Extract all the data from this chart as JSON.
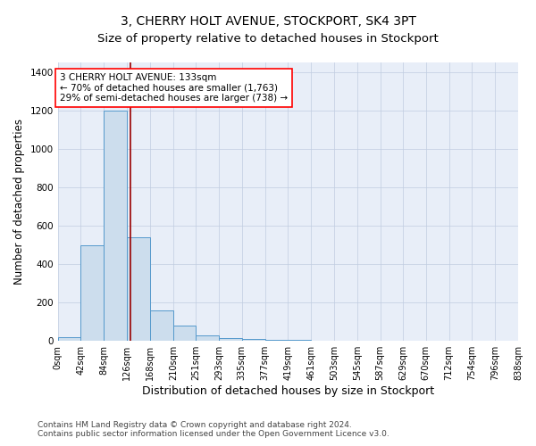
{
  "title": "3, CHERRY HOLT AVENUE, STOCKPORT, SK4 3PT",
  "subtitle": "Size of property relative to detached houses in Stockport",
  "xlabel": "Distribution of detached houses by size in Stockport",
  "ylabel": "Number of detached properties",
  "footnote1": "Contains HM Land Registry data © Crown copyright and database right 2024.",
  "footnote2": "Contains public sector information licensed under the Open Government Licence v3.0.",
  "bin_edges": [
    0,
    42,
    84,
    126,
    168,
    210,
    251,
    293,
    335,
    377,
    419,
    461,
    503,
    545,
    587,
    629,
    670,
    712,
    754,
    796,
    838
  ],
  "bar_heights": [
    20,
    500,
    1200,
    540,
    160,
    80,
    30,
    15,
    8,
    5,
    4,
    3,
    2,
    2,
    2,
    2,
    1,
    1,
    1,
    1
  ],
  "bar_color": "#ccdded",
  "bar_edge_color": "#5599cc",
  "bar_edge_width": 0.7,
  "property_size": 133,
  "red_line_color": "#990000",
  "annotation_text": "3 CHERRY HOLT AVENUE: 133sqm\n← 70% of detached houses are smaller (1,763)\n29% of semi-detached houses are larger (738) →",
  "annotation_box_color": "white",
  "annotation_box_edge": "red",
  "ylim": [
    0,
    1450
  ],
  "xlim": [
    0,
    838
  ],
  "background_color": "#e8eef8",
  "grid_color": "#c0cce0",
  "title_fontsize": 10,
  "subtitle_fontsize": 9.5,
  "xlabel_fontsize": 9,
  "ylabel_fontsize": 8.5,
  "tick_fontsize": 7,
  "footnote_fontsize": 6.5,
  "annotation_fontsize": 7.5
}
